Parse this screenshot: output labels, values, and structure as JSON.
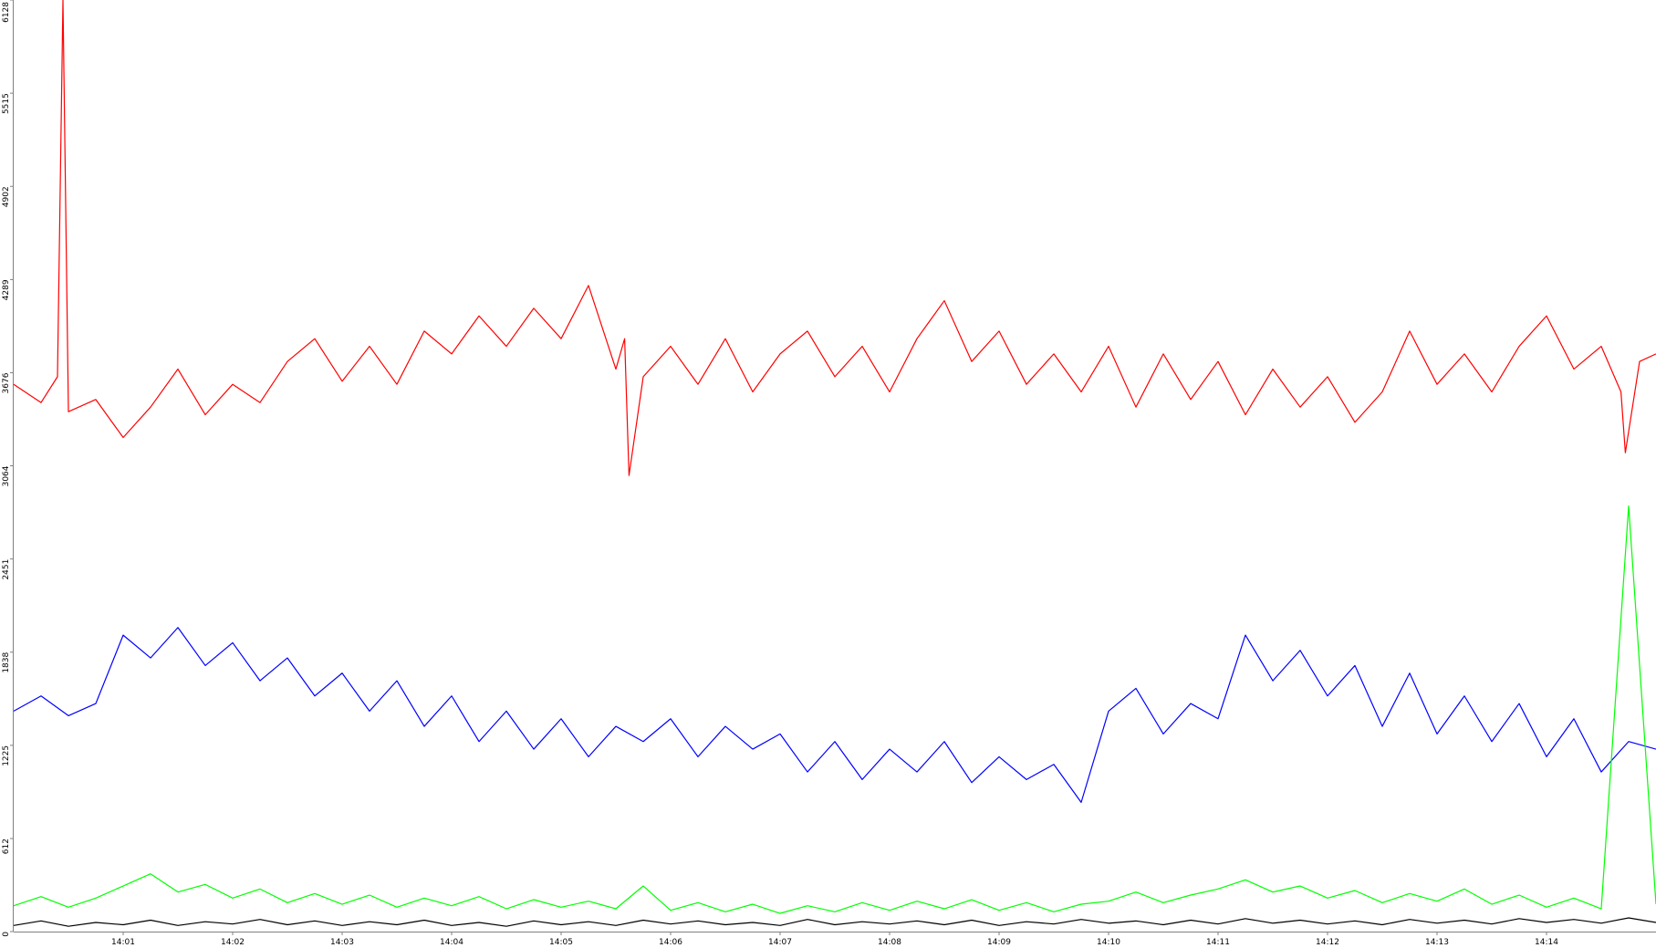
{
  "chart_data": {
    "type": "line",
    "ylim": [
      0,
      6128
    ],
    "yticks": [
      0,
      612,
      1225,
      1838,
      2451,
      3064,
      3676,
      4289,
      4902,
      5515,
      6128
    ],
    "xlim": [
      0,
      15
    ],
    "xticks": [
      {
        "value": 1,
        "label": "14:01"
      },
      {
        "value": 2,
        "label": "14:02"
      },
      {
        "value": 3,
        "label": "14:03"
      },
      {
        "value": 4,
        "label": "14:04"
      },
      {
        "value": 5,
        "label": "14:05"
      },
      {
        "value": 6,
        "label": "14:06"
      },
      {
        "value": 7,
        "label": "14:07"
      },
      {
        "value": 8,
        "label": "14:08"
      },
      {
        "value": 9,
        "label": "14:09"
      },
      {
        "value": 10,
        "label": "14:10"
      },
      {
        "value": 11,
        "label": "14:11"
      },
      {
        "value": 12,
        "label": "14:12"
      },
      {
        "value": 13,
        "label": "14:13"
      },
      {
        "value": 14,
        "label": "14:14"
      }
    ],
    "series": [
      {
        "color": "#ff0000",
        "x": [
          0,
          0.25,
          0.4,
          0.45,
          0.5,
          0.75,
          1,
          1.25,
          1.5,
          1.75,
          2,
          2.25,
          2.5,
          2.75,
          3,
          3.25,
          3.5,
          3.75,
          4,
          4.25,
          4.5,
          4.75,
          5,
          5.25,
          5.5,
          5.58,
          5.62,
          5.75,
          6,
          6.25,
          6.5,
          6.75,
          7,
          7.25,
          7.5,
          7.75,
          8,
          8.25,
          8.5,
          8.75,
          9,
          9.25,
          9.5,
          9.75,
          10,
          10.25,
          10.5,
          10.75,
          11,
          11.25,
          11.5,
          11.75,
          12,
          12.25,
          12.5,
          12.75,
          13,
          13.25,
          13.5,
          13.75,
          14,
          14.25,
          14.5,
          14.68,
          14.72,
          14.85,
          15
        ],
        "values": [
          3600,
          3480,
          3650,
          6128,
          3420,
          3500,
          3250,
          3450,
          3700,
          3400,
          3600,
          3480,
          3750,
          3900,
          3620,
          3850,
          3600,
          3950,
          3800,
          4050,
          3850,
          4100,
          3900,
          4250,
          3700,
          3900,
          3000,
          3650,
          3850,
          3600,
          3900,
          3550,
          3800,
          3950,
          3650,
          3850,
          3550,
          3900,
          4150,
          3750,
          3950,
          3600,
          3800,
          3550,
          3850,
          3450,
          3800,
          3500,
          3750,
          3400,
          3700,
          3450,
          3650,
          3350,
          3550,
          3950,
          3600,
          3800,
          3550,
          3850,
          4050,
          3700,
          3850,
          3550,
          3150,
          3750,
          3800
        ]
      },
      {
        "color": "#0000ff",
        "x": [
          0,
          0.25,
          0.5,
          0.75,
          1,
          1.25,
          1.5,
          1.75,
          2,
          2.25,
          2.5,
          2.75,
          3,
          3.25,
          3.5,
          3.75,
          4,
          4.25,
          4.5,
          4.75,
          5,
          5.25,
          5.5,
          5.75,
          6,
          6.25,
          6.5,
          6.75,
          7,
          7.25,
          7.5,
          7.75,
          8,
          8.25,
          8.5,
          8.75,
          9,
          9.25,
          9.5,
          9.75,
          10,
          10.25,
          10.5,
          10.75,
          11,
          11.25,
          11.5,
          11.75,
          12,
          12.25,
          12.5,
          12.75,
          13,
          13.25,
          13.5,
          13.75,
          14,
          14.25,
          14.5,
          14.75,
          15
        ],
        "values": [
          1450,
          1550,
          1420,
          1500,
          1950,
          1800,
          2000,
          1750,
          1900,
          1650,
          1800,
          1550,
          1700,
          1450,
          1650,
          1350,
          1550,
          1250,
          1450,
          1200,
          1400,
          1150,
          1350,
          1250,
          1400,
          1150,
          1350,
          1200,
          1300,
          1050,
          1250,
          1000,
          1200,
          1050,
          1250,
          980,
          1150,
          1000,
          1100,
          850,
          1450,
          1600,
          1300,
          1500,
          1400,
          1950,
          1650,
          1850,
          1550,
          1750,
          1350,
          1700,
          1300,
          1550,
          1250,
          1500,
          1150,
          1400,
          1050,
          1250,
          1200
        ]
      },
      {
        "color": "#00ff00",
        "x": [
          0,
          0.25,
          0.5,
          0.75,
          1,
          1.25,
          1.5,
          1.75,
          2,
          2.25,
          2.5,
          2.75,
          3,
          3.25,
          3.5,
          3.75,
          4,
          4.25,
          4.5,
          4.75,
          5,
          5.25,
          5.5,
          5.75,
          6,
          6.25,
          6.5,
          6.75,
          7,
          7.25,
          7.5,
          7.75,
          8,
          8.25,
          8.5,
          8.75,
          9,
          9.25,
          9.5,
          9.75,
          10,
          10.25,
          10.5,
          10.75,
          11,
          11.25,
          11.5,
          11.75,
          12,
          12.25,
          12.5,
          12.75,
          13,
          13.25,
          13.5,
          13.75,
          14,
          14.25,
          14.5,
          14.75,
          15
        ],
        "values": [
          170,
          230,
          160,
          220,
          300,
          380,
          260,
          310,
          220,
          280,
          190,
          250,
          180,
          240,
          160,
          220,
          170,
          230,
          150,
          210,
          160,
          200,
          150,
          300,
          140,
          190,
          130,
          180,
          120,
          170,
          130,
          190,
          140,
          200,
          150,
          210,
          140,
          190,
          130,
          180,
          200,
          260,
          190,
          240,
          280,
          340,
          260,
          300,
          220,
          270,
          190,
          250,
          200,
          280,
          180,
          240,
          160,
          220,
          150,
          2800,
          180
        ]
      },
      {
        "color": "#000000",
        "x": [
          0,
          0.25,
          0.5,
          0.75,
          1,
          1.25,
          1.5,
          1.75,
          2,
          2.25,
          2.5,
          2.75,
          3,
          3.25,
          3.5,
          3.75,
          4,
          4.25,
          4.5,
          4.75,
          5,
          5.25,
          5.5,
          5.75,
          6,
          6.25,
          6.5,
          6.75,
          7,
          7.25,
          7.5,
          7.75,
          8,
          8.25,
          8.5,
          8.75,
          9,
          9.25,
          9.5,
          9.75,
          10,
          10.25,
          10.5,
          10.75,
          11,
          11.25,
          11.5,
          11.75,
          12,
          12.25,
          12.5,
          12.75,
          13,
          13.25,
          13.5,
          13.75,
          14,
          14.25,
          14.5,
          14.75,
          15
        ],
        "values": [
          40,
          70,
          35,
          60,
          45,
          75,
          40,
          65,
          50,
          80,
          45,
          70,
          40,
          65,
          45,
          75,
          40,
          60,
          35,
          70,
          45,
          65,
          40,
          75,
          50,
          70,
          45,
          60,
          40,
          80,
          45,
          65,
          50,
          70,
          45,
          75,
          40,
          65,
          50,
          80,
          55,
          70,
          45,
          75,
          50,
          85,
          55,
          75,
          50,
          70,
          45,
          80,
          55,
          75,
          50,
          85,
          60,
          80,
          55,
          90,
          60
        ]
      }
    ]
  }
}
